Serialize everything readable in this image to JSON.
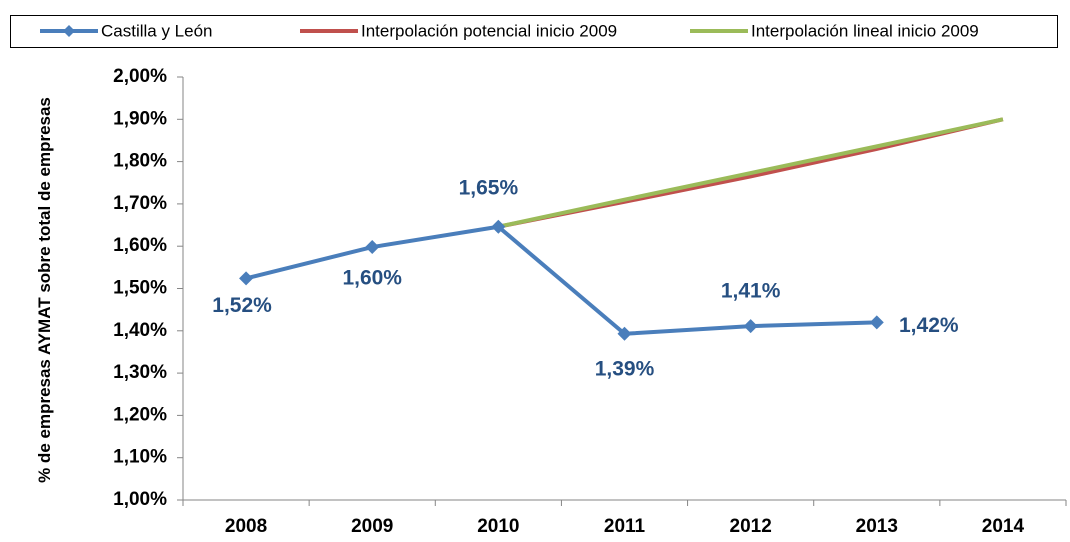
{
  "chart_data": {
    "type": "line",
    "y_label": "% de empresas AYMAT sobre total de empresas",
    "categories": [
      "2008",
      "2009",
      "2010",
      "2011",
      "2012",
      "2013",
      "2014"
    ],
    "series": [
      {
        "name": "Castilla y León",
        "color": "#4a7ebb",
        "marker": "diamond",
        "values": [
          1.524,
          1.598,
          1.646,
          1.393,
          1.411,
          1.42,
          null
        ],
        "value_labels": [
          "1,52%",
          "1,60%",
          "1,65%",
          "1,39%",
          "1,41%",
          "1,42%",
          null
        ]
      },
      {
        "name": "Interpolación potencial inicio 2009",
        "color": "#c0504d",
        "values": [
          null,
          null,
          1.646,
          1.705,
          1.765,
          1.83,
          1.9
        ]
      },
      {
        "name": "Interpolación lineal inicio 2009",
        "color": "#9bbb59",
        "values": [
          null,
          null,
          1.646,
          1.71,
          1.773,
          1.836,
          1.9
        ]
      }
    ],
    "ylim": [
      1.0,
      2.0
    ],
    "yticks": [
      {
        "value": 1.0,
        "label": "1,00%"
      },
      {
        "value": 1.1,
        "label": "1,10%"
      },
      {
        "value": 1.2,
        "label": "1,20%"
      },
      {
        "value": 1.3,
        "label": "1,30%"
      },
      {
        "value": 1.4,
        "label": "1,40%"
      },
      {
        "value": 1.5,
        "label": "1,50%"
      },
      {
        "value": 1.6,
        "label": "1,60%"
      },
      {
        "value": 1.7,
        "label": "1,70%"
      },
      {
        "value": 1.8,
        "label": "1,80%"
      },
      {
        "value": 1.9,
        "label": "1,90%"
      },
      {
        "value": 2.0,
        "label": "2,00%"
      }
    ],
    "legend": "top",
    "grid": false
  }
}
